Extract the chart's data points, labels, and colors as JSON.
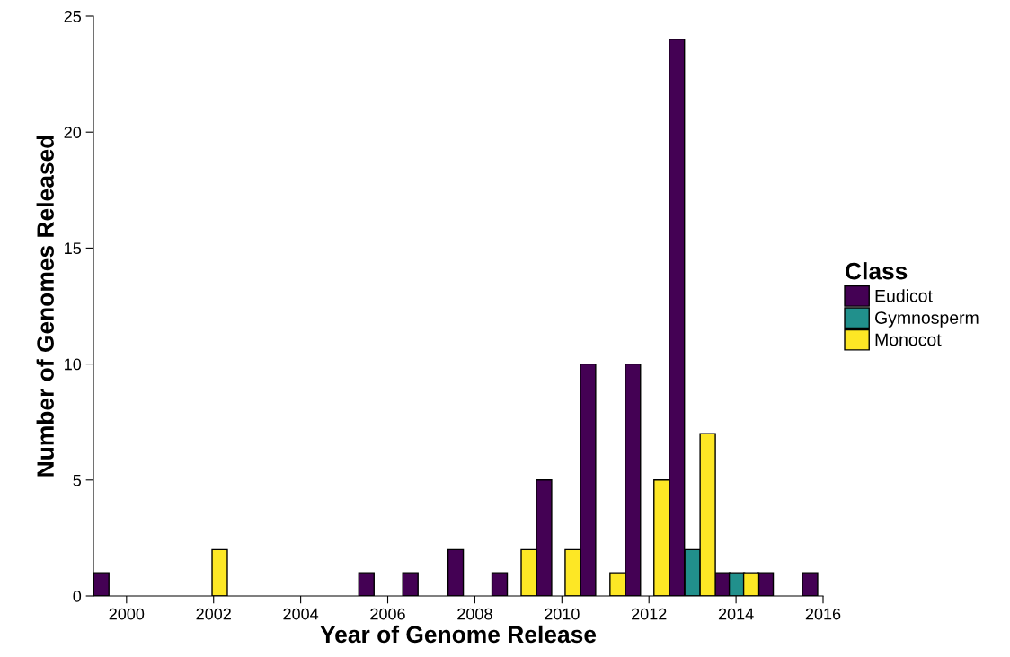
{
  "chart_data": {
    "type": "bar",
    "xlabel": "Year of Genome Release",
    "ylabel": "Number of Genomes Released",
    "legend_title": "Class",
    "legend": "right",
    "grid": false,
    "xlim": [
      1999.24,
      2016
    ],
    "xticks": [
      2000,
      2002,
      2004,
      2006,
      2008,
      2010,
      2012,
      2014,
      2016
    ],
    "ylim": [
      0,
      25
    ],
    "yticks": [
      0,
      5,
      10,
      15,
      20,
      25
    ],
    "series": [
      {
        "name": "Eudicot",
        "color": "#440154",
        "x": [
          1999.42,
          2005.51,
          2006.52,
          2007.56,
          2008.57,
          2009.59,
          2010.6,
          2011.63,
          2012.64,
          2013.69,
          2014.68,
          2015.7
        ],
        "values": [
          1,
          1,
          1,
          2,
          1,
          5,
          10,
          10,
          24,
          1,
          1,
          1
        ]
      },
      {
        "name": "Gymnosperm",
        "color": "#21908c",
        "x": [
          2013.0,
          2014.02
        ],
        "values": [
          2,
          1
        ]
      },
      {
        "name": "Monocot",
        "color": "#fde725",
        "x": [
          2002.14,
          2009.24,
          2010.25,
          2011.28,
          2012.29,
          2013.35,
          2014.35
        ],
        "values": [
          2,
          2,
          2,
          1,
          5,
          7,
          1
        ]
      }
    ]
  }
}
